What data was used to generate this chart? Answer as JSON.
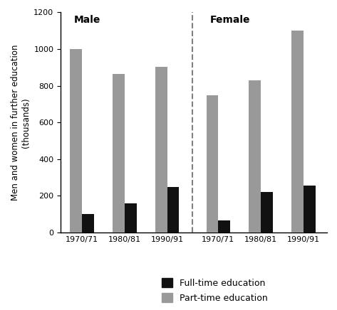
{
  "title_male": "Male",
  "title_female": "Female",
  "periods": [
    "1970/71",
    "1980/81",
    "1990/91"
  ],
  "male_fulltime": [
    100,
    160,
    250
  ],
  "male_parttime": [
    1000,
    865,
    905
  ],
  "female_fulltime": [
    65,
    220,
    255
  ],
  "female_parttime": [
    750,
    830,
    1100
  ],
  "ylabel": "Men and women in further education\n(thousands)",
  "ylim": [
    0,
    1200
  ],
  "yticks": [
    0,
    200,
    400,
    600,
    800,
    1000,
    1200
  ],
  "color_fulltime": "#111111",
  "color_parttime": "#999999",
  "legend_fulltime": "Full-time education",
  "legend_parttime": "Part-time education",
  "bar_width": 0.28,
  "background_color": "#ffffff"
}
